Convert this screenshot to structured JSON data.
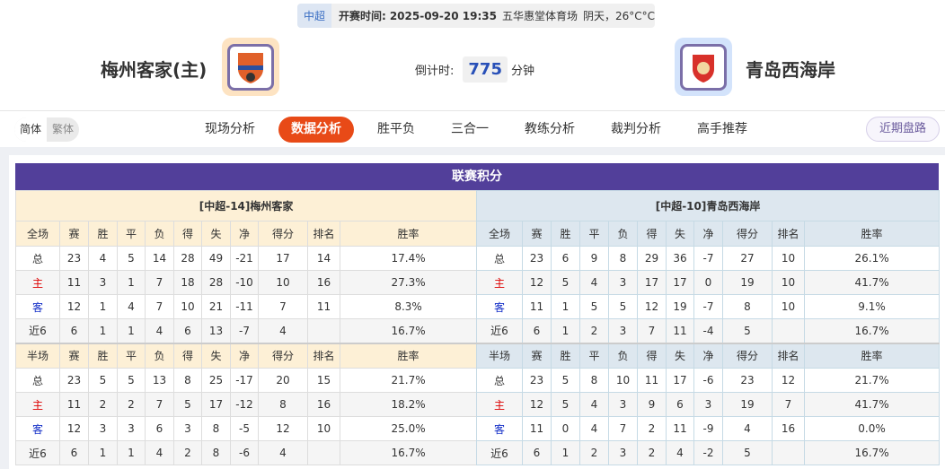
{
  "match": {
    "league": "中超",
    "time_label": "开赛时间:",
    "time": "2025-09-20 19:35",
    "venue": "五华惠堂体育场",
    "weather": "阴天，26°C°C"
  },
  "home": {
    "name": "梅州客家(主)",
    "logo": "meizhou-hakka-logo"
  },
  "away": {
    "name": "青岛西海岸",
    "logo": "qingdao-west-coast-logo"
  },
  "countdown": {
    "label": "倒计时:",
    "value": "775",
    "unit": "分钟"
  },
  "lang": {
    "simplified": "简体",
    "traditional": "繁体"
  },
  "tabs": [
    "现场分析",
    "数据分析",
    "胜平负",
    "三合一",
    "教练分析",
    "裁判分析",
    "高手推荐"
  ],
  "active_tab": "数据分析",
  "recent_button": "近期盘路",
  "section_title": "联赛积分",
  "columns": [
    "赛",
    "胜",
    "平",
    "负",
    "得",
    "失",
    "净",
    "得分",
    "排名",
    "胜率"
  ],
  "full_label": "全场",
  "half_label": "半场",
  "colors": {
    "header": "#523f9a",
    "active_tab": "#e84a17",
    "home_row": "#dd0000",
    "away_row": "#1530c8"
  },
  "tables": [
    {
      "title": "[中超-14]梅州客家",
      "full": [
        [
          "总",
          "23",
          "4",
          "5",
          "14",
          "28",
          "49",
          "-21",
          "17",
          "14",
          "17.4%"
        ],
        [
          "主",
          "11",
          "3",
          "1",
          "7",
          "18",
          "28",
          "-10",
          "10",
          "16",
          "27.3%"
        ],
        [
          "客",
          "12",
          "1",
          "4",
          "7",
          "10",
          "21",
          "-11",
          "7",
          "11",
          "8.3%"
        ],
        [
          "近6",
          "6",
          "1",
          "1",
          "4",
          "6",
          "13",
          "-7",
          "4",
          "",
          "16.7%"
        ]
      ],
      "half": [
        [
          "总",
          "23",
          "5",
          "5",
          "13",
          "8",
          "25",
          "-17",
          "20",
          "15",
          "21.7%"
        ],
        [
          "主",
          "11",
          "2",
          "2",
          "7",
          "5",
          "17",
          "-12",
          "8",
          "16",
          "18.2%"
        ],
        [
          "客",
          "12",
          "3",
          "3",
          "6",
          "3",
          "8",
          "-5",
          "12",
          "10",
          "25.0%"
        ],
        [
          "近6",
          "6",
          "1",
          "1",
          "4",
          "2",
          "8",
          "-6",
          "4",
          "",
          "16.7%"
        ]
      ]
    },
    {
      "title": "[中超-10]青岛西海岸",
      "full": [
        [
          "总",
          "23",
          "6",
          "9",
          "8",
          "29",
          "36",
          "-7",
          "27",
          "10",
          "26.1%"
        ],
        [
          "主",
          "12",
          "5",
          "4",
          "3",
          "17",
          "17",
          "0",
          "19",
          "10",
          "41.7%"
        ],
        [
          "客",
          "11",
          "1",
          "5",
          "5",
          "12",
          "19",
          "-7",
          "8",
          "10",
          "9.1%"
        ],
        [
          "近6",
          "6",
          "1",
          "2",
          "3",
          "7",
          "11",
          "-4",
          "5",
          "",
          "16.7%"
        ]
      ],
      "half": [
        [
          "总",
          "23",
          "5",
          "8",
          "10",
          "11",
          "17",
          "-6",
          "23",
          "12",
          "21.7%"
        ],
        [
          "主",
          "12",
          "5",
          "4",
          "3",
          "9",
          "6",
          "3",
          "19",
          "7",
          "41.7%"
        ],
        [
          "客",
          "11",
          "0",
          "4",
          "7",
          "2",
          "11",
          "-9",
          "4",
          "16",
          "0.0%"
        ],
        [
          "近6",
          "6",
          "1",
          "2",
          "3",
          "2",
          "4",
          "-2",
          "5",
          "",
          "16.7%"
        ]
      ]
    }
  ]
}
